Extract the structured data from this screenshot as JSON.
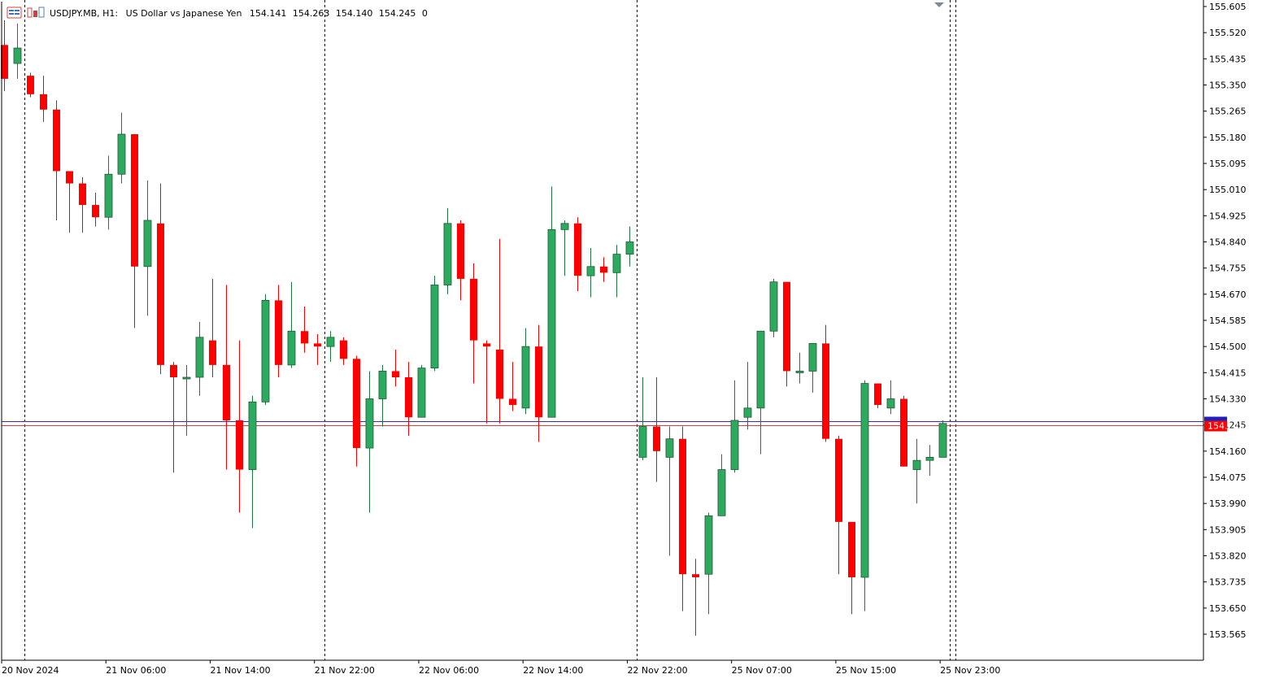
{
  "header": {
    "symbol": "USDJPY.MB, H1:",
    "description": "US Dollar vs Japanese Yen",
    "open": "154.141",
    "high": "154.263",
    "low": "154.140",
    "close": "154.245",
    "extra": "0",
    "icons": [
      "chart-menu-icon",
      "indicators-icon"
    ]
  },
  "colors": {
    "bull": "#2eaa60",
    "bear": "#ff0000",
    "bid_line": "#d84040",
    "ask_line": "#3030b0",
    "separator": "#000000"
  },
  "chart_data": {
    "type": "candlestick",
    "title": "",
    "timeframe": "H1",
    "ylim": [
      153.5,
      155.63
    ],
    "y_ticks": [
      "155.605",
      "155.520",
      "155.435",
      "155.350",
      "155.265",
      "155.180",
      "155.095",
      "155.010",
      "154.925",
      "154.840",
      "154.755",
      "154.670",
      "154.585",
      "154.500",
      "154.415",
      "154.330",
      "154.245",
      "154.160",
      "154.075",
      "153.990",
      "153.905",
      "153.820",
      "153.735",
      "153.650",
      "153.565"
    ],
    "x_ticks": [
      "20 Nov 2024",
      "21 Nov 06:00",
      "21 Nov 14:00",
      "21 Nov 22:00",
      "22 Nov 06:00",
      "22 Nov 14:00",
      "22 Nov 22:00",
      "25 Nov 07:00",
      "25 Nov 15:00",
      "25 Nov 23:00"
    ],
    "day_separators_after_index": [
      1,
      24,
      48,
      72
    ],
    "bid_price": 154.245,
    "ask_price": 154.258,
    "bid_label": "154.245",
    "candles": [
      [
        155.48,
        155.56,
        155.33,
        155.37
      ],
      [
        155.42,
        155.55,
        155.37,
        155.47
      ],
      [
        155.38,
        155.39,
        155.31,
        155.32
      ],
      [
        155.32,
        155.38,
        155.23,
        155.27
      ],
      [
        155.27,
        155.3,
        154.91,
        155.07
      ],
      [
        155.07,
        155.07,
        154.87,
        155.03
      ],
      [
        155.03,
        155.05,
        154.87,
        154.96
      ],
      [
        154.96,
        155.0,
        154.89,
        154.92
      ],
      [
        154.92,
        155.12,
        154.88,
        155.06
      ],
      [
        155.06,
        155.26,
        155.03,
        155.19
      ],
      [
        155.19,
        155.19,
        154.56,
        154.76
      ],
      [
        154.76,
        155.04,
        154.6,
        154.91
      ],
      [
        154.9,
        155.03,
        154.41,
        154.44
      ],
      [
        154.44,
        154.45,
        154.09,
        154.4
      ],
      [
        154.4,
        154.44,
        154.21,
        154.4
      ],
      [
        154.4,
        154.58,
        154.34,
        154.53
      ],
      [
        154.52,
        154.72,
        154.4,
        154.44
      ],
      [
        154.44,
        154.7,
        154.1,
        154.26
      ],
      [
        154.26,
        154.52,
        153.96,
        154.1
      ],
      [
        154.1,
        154.34,
        153.91,
        154.32
      ],
      [
        154.32,
        154.67,
        154.31,
        154.65
      ],
      [
        154.65,
        154.7,
        154.4,
        154.44
      ],
      [
        154.44,
        154.71,
        154.43,
        154.55
      ],
      [
        154.55,
        154.63,
        154.48,
        154.51
      ],
      [
        154.51,
        154.54,
        154.44,
        154.5
      ],
      [
        154.5,
        154.55,
        154.45,
        154.53
      ],
      [
        154.52,
        154.53,
        154.44,
        154.46
      ],
      [
        154.46,
        154.47,
        154.11,
        154.17
      ],
      [
        154.17,
        154.42,
        153.96,
        154.33
      ],
      [
        154.33,
        154.44,
        154.24,
        154.42
      ],
      [
        154.42,
        154.49,
        154.37,
        154.4
      ],
      [
        154.4,
        154.45,
        154.21,
        154.27
      ],
      [
        154.27,
        154.44,
        154.27,
        154.43
      ],
      [
        154.43,
        154.73,
        154.42,
        154.7
      ],
      [
        154.7,
        154.95,
        154.67,
        154.9
      ],
      [
        154.9,
        154.91,
        154.65,
        154.72
      ],
      [
        154.72,
        154.77,
        154.38,
        154.52
      ],
      [
        154.51,
        154.52,
        154.25,
        154.5
      ],
      [
        154.49,
        154.85,
        154.25,
        154.33
      ],
      [
        154.33,
        154.45,
        154.29,
        154.31
      ],
      [
        154.3,
        154.56,
        154.28,
        154.5
      ],
      [
        154.5,
        154.57,
        154.19,
        154.27
      ],
      [
        154.27,
        155.02,
        154.27,
        154.88
      ],
      [
        154.88,
        154.91,
        154.73,
        154.9
      ],
      [
        154.9,
        154.92,
        154.68,
        154.73
      ],
      [
        154.73,
        154.82,
        154.66,
        154.76
      ],
      [
        154.76,
        154.79,
        154.71,
        154.74
      ],
      [
        154.74,
        154.83,
        154.66,
        154.8
      ],
      [
        154.8,
        154.89,
        154.76,
        154.84
      ],
      [
        154.14,
        154.4,
        154.13,
        154.24
      ],
      [
        154.24,
        154.4,
        154.06,
        154.16
      ],
      [
        154.14,
        154.24,
        153.82,
        154.2
      ],
      [
        154.2,
        154.24,
        153.64,
        153.76
      ],
      [
        153.76,
        153.81,
        153.56,
        153.75
      ],
      [
        153.76,
        153.96,
        153.63,
        153.95
      ],
      [
        153.95,
        154.15,
        153.95,
        154.1
      ],
      [
        154.1,
        154.39,
        154.09,
        154.26
      ],
      [
        154.27,
        154.45,
        154.23,
        154.3
      ],
      [
        154.3,
        154.55,
        154.15,
        154.55
      ],
      [
        154.55,
        154.72,
        154.53,
        154.71
      ],
      [
        154.71,
        154.71,
        154.37,
        154.42
      ],
      [
        154.42,
        154.48,
        154.38,
        154.42
      ],
      [
        154.42,
        154.51,
        154.35,
        154.51
      ],
      [
        154.51,
        154.57,
        154.19,
        154.2
      ],
      [
        154.2,
        154.21,
        153.76,
        153.93
      ],
      [
        153.93,
        153.93,
        153.63,
        153.75
      ],
      [
        153.75,
        154.39,
        153.64,
        154.38
      ],
      [
        154.38,
        154.38,
        154.3,
        154.31
      ],
      [
        154.3,
        154.39,
        154.28,
        154.33
      ],
      [
        154.33,
        154.34,
        154.11,
        154.11
      ],
      [
        154.1,
        154.2,
        153.99,
        154.13
      ],
      [
        154.13,
        154.18,
        154.08,
        154.14
      ],
      [
        154.14,
        154.26,
        154.14,
        154.25
      ]
    ]
  }
}
